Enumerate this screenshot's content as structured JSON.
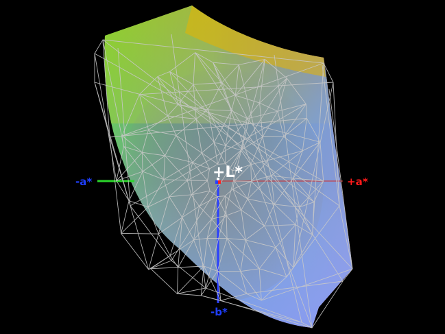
{
  "axes": {
    "neg_a": {
      "label": "-a*",
      "color": "#1f3fff"
    },
    "pos_a": {
      "label": "+a*",
      "color": "#ff1a1a"
    },
    "neg_b": {
      "label": "-b*",
      "color": "#1f3fff"
    },
    "center": {
      "label": "+L*",
      "color": "#ffffff"
    }
  },
  "colors": {
    "background": "#000000",
    "wireframe": "#c8c8c8",
    "neg_a_axis_line": "#2bd62b",
    "neg_b_axis_line": "#2a3fff",
    "gamut_yellow": "#d9d000",
    "gamut_orange": "#ff5a00",
    "gamut_green": "#6fe030",
    "gamut_red": "#f04040",
    "gamut_magenta": "#e040d0",
    "gamut_blue": "#80b0f0"
  }
}
